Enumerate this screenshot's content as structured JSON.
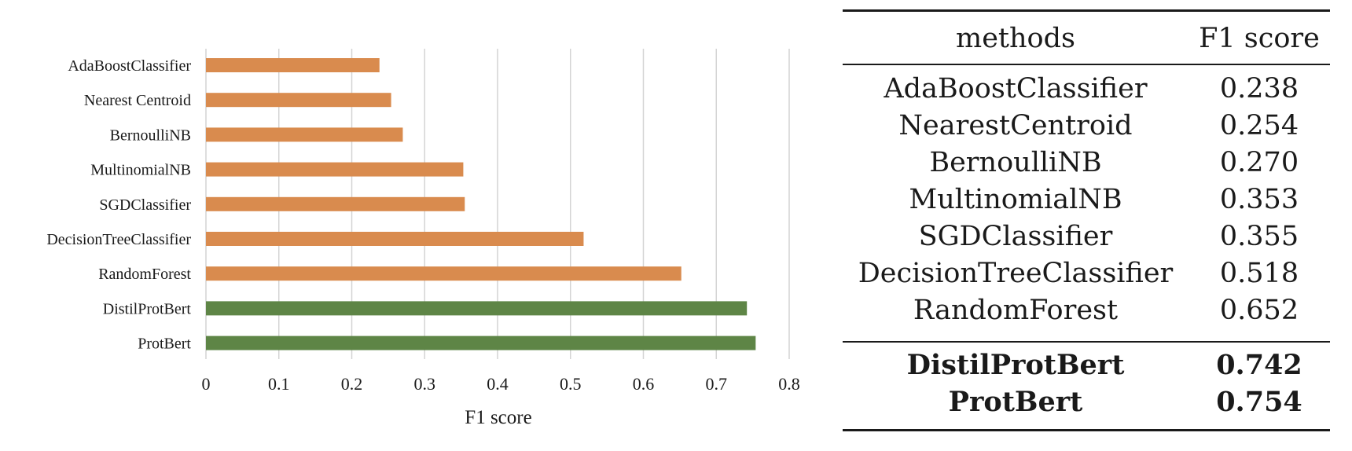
{
  "chart_data": {
    "type": "bar",
    "orientation": "horizontal",
    "categories": [
      "AdaBoostClassifier",
      "Nearest Centroid",
      "BernoulliNB",
      "MultinomialNB",
      "SGDClassifier",
      "DecisionTreeClassifier",
      "RandomForest",
      "DistilProtBert",
      "ProtBert"
    ],
    "values": [
      0.238,
      0.254,
      0.27,
      0.353,
      0.355,
      0.518,
      0.652,
      0.742,
      0.754
    ],
    "bar_colors": [
      "#D98B4E",
      "#D98B4E",
      "#D98B4E",
      "#D98B4E",
      "#D98B4E",
      "#D98B4E",
      "#D98B4E",
      "#5E8546",
      "#5E8546"
    ],
    "xlabel": "F1 score",
    "xlim": [
      0,
      0.8
    ],
    "xticks": [
      "0",
      "0.1",
      "0.2",
      "0.3",
      "0.4",
      "0.5",
      "0.6",
      "0.7",
      "0.8"
    ],
    "grid": "vertical"
  },
  "table": {
    "header": {
      "method": "methods",
      "score": "F1 score"
    },
    "rows": [
      {
        "method": "AdaBoostClassifier",
        "score": "0.238"
      },
      {
        "method": "NearestCentroid",
        "score": "0.254"
      },
      {
        "method": "BernoulliNB",
        "score": "0.270"
      },
      {
        "method": "MultinomialNB",
        "score": "0.353"
      },
      {
        "method": "SGDClassifier",
        "score": "0.355"
      },
      {
        "method": "DecisionTreeClassifier",
        "score": "0.518"
      },
      {
        "method": "RandomForest",
        "score": "0.652"
      }
    ],
    "highlight_rows": [
      {
        "method": "DistilProtBert",
        "score": "0.742"
      },
      {
        "method": "ProtBert",
        "score": "0.754"
      }
    ]
  }
}
